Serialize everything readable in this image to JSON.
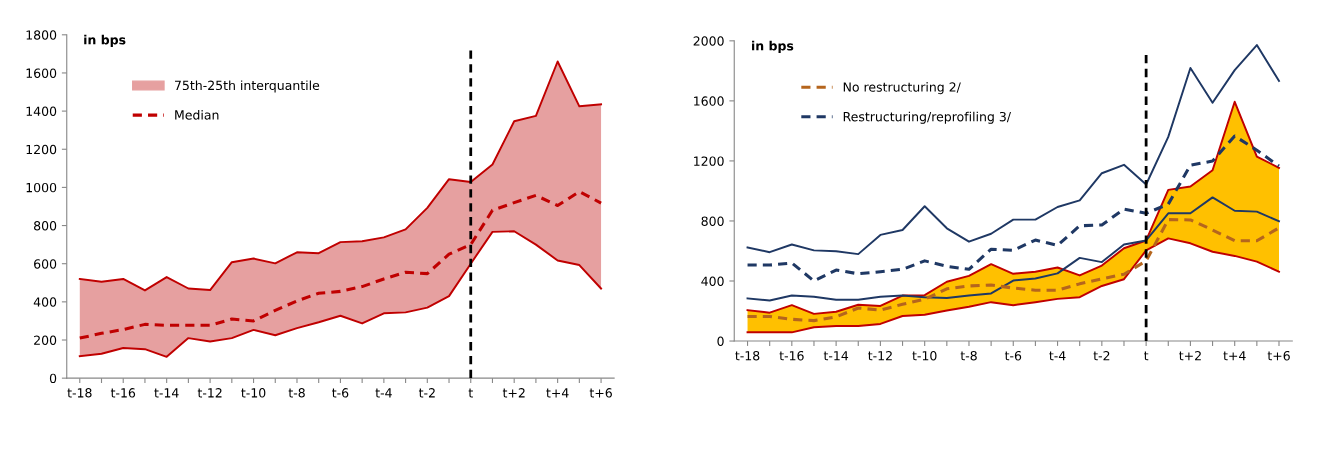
{
  "chart_data": [
    {
      "type": "line",
      "ylabel": "in bps",
      "categories": [
        "t-18",
        null,
        "t-16",
        null,
        "t-14",
        null,
        "t-12",
        null,
        "t-10",
        null,
        "t-8",
        null,
        "t-6",
        null,
        "t-4",
        null,
        "t-2",
        null,
        "t",
        null,
        "t+2",
        null,
        "t+4",
        null,
        "t+6"
      ],
      "ylim": [
        0,
        1800
      ],
      "yticks": [
        0,
        200,
        400,
        600,
        800,
        1000,
        1200,
        1400,
        1600,
        1800
      ],
      "grid": false,
      "legend": "top left",
      "ref_lines": [
        {
          "axis": "x",
          "value": "t",
          "color": "#000000",
          "line_style": "dashed"
        }
      ],
      "series": [
        {
          "type": "line",
          "color": "#c00000",
          "line_style": "solid",
          "values": [
            115,
            128,
            158,
            152,
            112,
            210,
            192,
            210,
            253,
            225,
            262,
            293,
            327,
            287,
            340,
            345,
            370,
            430,
            600,
            767,
            770,
            700,
            617,
            593,
            470
          ]
        },
        {
          "name": "75th-25th interquantile",
          "type": "area",
          "color": "#e6a0a0",
          "values": [
            520,
            505,
            520,
            460,
            530,
            470,
            462,
            608,
            627,
            602,
            660,
            655,
            713,
            718,
            738,
            780,
            893,
            1043,
            1028,
            1120,
            1347,
            1375,
            1660,
            1425,
            1435
          ]
        },
        {
          "name": "Median",
          "type": "line",
          "color": "#c00000",
          "line_style": "dashed",
          "values": [
            210,
            235,
            255,
            282,
            277,
            277,
            277,
            310,
            300,
            355,
            405,
            445,
            455,
            480,
            520,
            555,
            548,
            650,
            700,
            880,
            920,
            958,
            905,
            978,
            918
          ]
        }
      ]
    },
    {
      "type": "line",
      "ylabel": "in bps",
      "categories": [
        "t-18",
        null,
        "t-16",
        null,
        "t-14",
        null,
        "t-12",
        null,
        "t-10",
        null,
        "t-8",
        null,
        "t-6",
        null,
        "t-4",
        null,
        "t-2",
        null,
        "t",
        null,
        "t+2",
        null,
        "t+4",
        null,
        "t+6"
      ],
      "ylim": [
        0,
        2000
      ],
      "yticks": [
        0,
        400,
        800,
        1200,
        1600,
        2000
      ],
      "grid": false,
      "legend": "top left",
      "ref_lines": [
        {
          "axis": "x",
          "value": "t",
          "color": "#000000",
          "line_style": "dashed"
        }
      ],
      "series": [
        {
          "type": "line",
          "color": "#c00000",
          "line_style": "solid",
          "values": [
            58,
            58,
            58,
            92,
            100,
            100,
            114,
            167,
            175,
            203,
            228,
            259,
            239,
            259,
            281,
            292,
            367,
            412,
            604,
            684,
            651,
            595,
            567,
            529,
            462
          ]
        },
        {
          "type": "area",
          "color": "#ffc000",
          "values": [
            206,
            189,
            239,
            181,
            195,
            242,
            234,
            303,
            306,
            395,
            434,
            512,
            448,
            462,
            490,
            437,
            503,
            618,
            670,
            1007,
            1029,
            1138,
            1594,
            1229,
            1154
          ]
        },
        {
          "type": "line",
          "color": "#1f3864",
          "line_style": "solid",
          "values": [
            623,
            592,
            643,
            604,
            598,
            579,
            707,
            740,
            898,
            751,
            662,
            715,
            809,
            809,
            893,
            937,
            1118,
            1174,
            1043,
            1360,
            1819,
            1588,
            1805,
            1972,
            1733
          ]
        },
        {
          "type": "line",
          "color": "#1f3864",
          "line_style": "solid",
          "values": [
            284,
            270,
            303,
            295,
            275,
            275,
            295,
            303,
            292,
            287,
            303,
            317,
            403,
            417,
            451,
            554,
            526,
            643,
            670,
            851,
            851,
            957,
            868,
            862,
            798
          ]
        },
        {
          "name": "No restructuring 2/",
          "type": "line",
          "color": "#b5651d",
          "line_style": "dashed",
          "values": [
            164,
            164,
            145,
            136,
            161,
            220,
            206,
            245,
            278,
            348,
            367,
            373,
            353,
            339,
            339,
            381,
            414,
            445,
            534,
            809,
            807,
            740,
            668,
            668,
            754
          ]
        },
        {
          "name": "Restructuring/reprofiling 3/",
          "type": "line",
          "color": "#1f3864",
          "line_style": "dashed",
          "values": [
            506,
            506,
            520,
            400,
            473,
            448,
            462,
            478,
            534,
            498,
            478,
            612,
            604,
            673,
            637,
            768,
            773,
            879,
            851,
            912,
            1171,
            1199,
            1366,
            1271,
            1166
          ]
        }
      ]
    }
  ]
}
